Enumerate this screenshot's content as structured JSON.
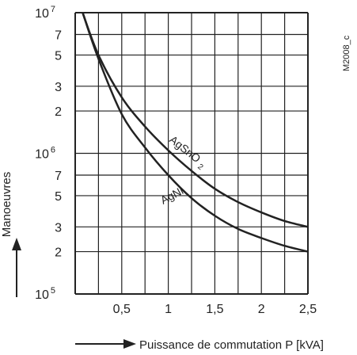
{
  "chart_data": {
    "type": "line",
    "figure_id": "M2008_c",
    "xlabel": "Puissance de commutation P [kVA]",
    "ylabel": "Manoeuvres",
    "xlim": [
      0,
      2.5
    ],
    "ylim": [
      100000,
      10000000
    ],
    "yscale": "log",
    "grid": true,
    "x_tick_labels": [
      "0,5",
      "1",
      "1,5",
      "2",
      "2,5"
    ],
    "x_ticks": [
      0.5,
      1,
      1.5,
      2,
      2.5
    ],
    "y_tick_labels": [
      {
        "value": 100000,
        "base": "10",
        "exp": "5"
      },
      {
        "value": 200000,
        "base": "2",
        "exp": ""
      },
      {
        "value": 300000,
        "base": "3",
        "exp": ""
      },
      {
        "value": 500000,
        "base": "5",
        "exp": ""
      },
      {
        "value": 700000,
        "base": "7",
        "exp": ""
      },
      {
        "value": 1000000,
        "base": "10",
        "exp": "6"
      },
      {
        "value": 2000000,
        "base": "2",
        "exp": ""
      },
      {
        "value": 3000000,
        "base": "3",
        "exp": ""
      },
      {
        "value": 5000000,
        "base": "5",
        "exp": ""
      },
      {
        "value": 7000000,
        "base": "7",
        "exp": ""
      },
      {
        "value": 10000000,
        "base": "10",
        "exp": "7"
      }
    ],
    "series": [
      {
        "name": "AgSnO2",
        "x": [
          0.08,
          0.25,
          0.5,
          0.75,
          1.0,
          1.25,
          1.5,
          1.75,
          2.0,
          2.25,
          2.5
        ],
        "y": [
          10000000,
          5000000,
          2500000,
          1550000,
          1050000,
          750000,
          560000,
          450000,
          380000,
          330000,
          300000
        ]
      },
      {
        "name": "AgNi",
        "x": [
          0.08,
          0.25,
          0.5,
          0.75,
          1.0,
          1.25,
          1.5,
          1.75,
          2.0,
          2.25,
          2.5
        ],
        "y": [
          10000000,
          4700000,
          1900000,
          1100000,
          700000,
          480000,
          360000,
          290000,
          250000,
          220000,
          200000
        ]
      }
    ]
  }
}
